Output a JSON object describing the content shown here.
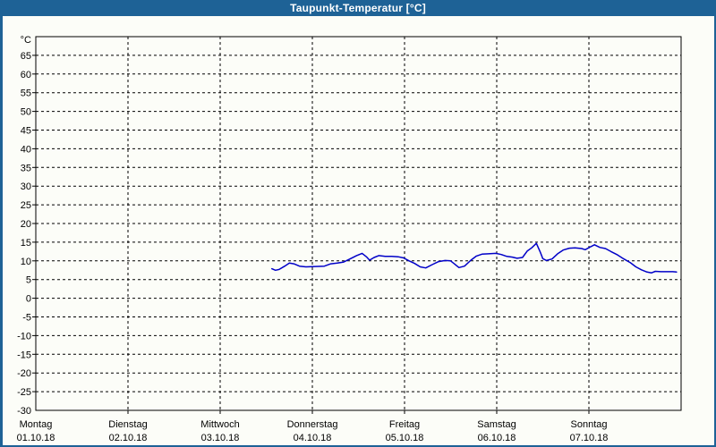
{
  "window": {
    "title": "Taupunkt-Temperatur [°C]",
    "titlebar_color": "#1e6296",
    "border_color": "#1e6296",
    "background": "#fcfdf8"
  },
  "chart_data": {
    "type": "line",
    "title": "Taupunkt-Temperatur [°C]",
    "y_unit_label": "°C",
    "ylim": [
      -30,
      70
    ],
    "y_tick_step": 5,
    "grid": "dashed",
    "legend": "none",
    "line_color": "#0000c8",
    "axis_color": "#000000",
    "x_axis": {
      "range_days": [
        0,
        7
      ],
      "days": [
        {
          "name": "Montag",
          "date": "01.10.18"
        },
        {
          "name": "Dienstag",
          "date": "02.10.18"
        },
        {
          "name": "Mittwoch",
          "date": "03.10.18"
        },
        {
          "name": "Donnerstag",
          "date": "04.10.18"
        },
        {
          "name": "Freitag",
          "date": "05.10.18"
        },
        {
          "name": "Samstag",
          "date": "06.10.18"
        },
        {
          "name": "Sonntag",
          "date": "07.10.18"
        }
      ]
    },
    "series": [
      {
        "name": "Taupunkt-Temperatur",
        "unit": "°C",
        "points_day_temp": [
          [
            2.56,
            7.9
          ],
          [
            2.6,
            7.5
          ],
          [
            2.64,
            7.7
          ],
          [
            2.7,
            8.6
          ],
          [
            2.75,
            9.4
          ],
          [
            2.8,
            9.2
          ],
          [
            2.86,
            8.6
          ],
          [
            2.93,
            8.4
          ],
          [
            3.03,
            8.5
          ],
          [
            3.13,
            8.6
          ],
          [
            3.2,
            9.2
          ],
          [
            3.27,
            9.4
          ],
          [
            3.34,
            9.7
          ],
          [
            3.4,
            10.4
          ],
          [
            3.48,
            11.4
          ],
          [
            3.54,
            12.0
          ],
          [
            3.59,
            11.0
          ],
          [
            3.62,
            10.2
          ],
          [
            3.67,
            10.9
          ],
          [
            3.72,
            11.4
          ],
          [
            3.79,
            11.2
          ],
          [
            3.86,
            11.2
          ],
          [
            3.93,
            11.1
          ],
          [
            3.99,
            10.8
          ],
          [
            4.05,
            10.0
          ],
          [
            4.11,
            9.3
          ],
          [
            4.17,
            8.4
          ],
          [
            4.23,
            8.1
          ],
          [
            4.3,
            9.0
          ],
          [
            4.37,
            9.8
          ],
          [
            4.44,
            10.1
          ],
          [
            4.5,
            10.0
          ],
          [
            4.54,
            9.2
          ],
          [
            4.59,
            8.2
          ],
          [
            4.65,
            8.6
          ],
          [
            4.72,
            10.2
          ],
          [
            4.78,
            11.3
          ],
          [
            4.84,
            11.8
          ],
          [
            4.91,
            11.9
          ],
          [
            4.99,
            12.0
          ],
          [
            5.05,
            11.7
          ],
          [
            5.11,
            11.2
          ],
          [
            5.17,
            11.0
          ],
          [
            5.22,
            10.7
          ],
          [
            5.28,
            10.9
          ],
          [
            5.33,
            12.6
          ],
          [
            5.38,
            13.5
          ],
          [
            5.43,
            14.7
          ],
          [
            5.47,
            12.5
          ],
          [
            5.5,
            10.6
          ],
          [
            5.54,
            10.1
          ],
          [
            5.6,
            10.5
          ],
          [
            5.66,
            11.9
          ],
          [
            5.72,
            12.9
          ],
          [
            5.79,
            13.4
          ],
          [
            5.85,
            13.5
          ],
          [
            5.92,
            13.3
          ],
          [
            5.96,
            13.0
          ],
          [
            6.02,
            13.8
          ],
          [
            6.06,
            14.3
          ],
          [
            6.12,
            13.6
          ],
          [
            6.18,
            13.3
          ],
          [
            6.24,
            12.5
          ],
          [
            6.31,
            11.6
          ],
          [
            6.38,
            10.5
          ],
          [
            6.45,
            9.5
          ],
          [
            6.51,
            8.4
          ],
          [
            6.57,
            7.6
          ],
          [
            6.63,
            7.0
          ],
          [
            6.68,
            6.8
          ],
          [
            6.72,
            7.2
          ],
          [
            6.78,
            7.1
          ],
          [
            6.84,
            7.1
          ],
          [
            6.91,
            7.1
          ],
          [
            6.95,
            7.0
          ]
        ]
      }
    ]
  }
}
